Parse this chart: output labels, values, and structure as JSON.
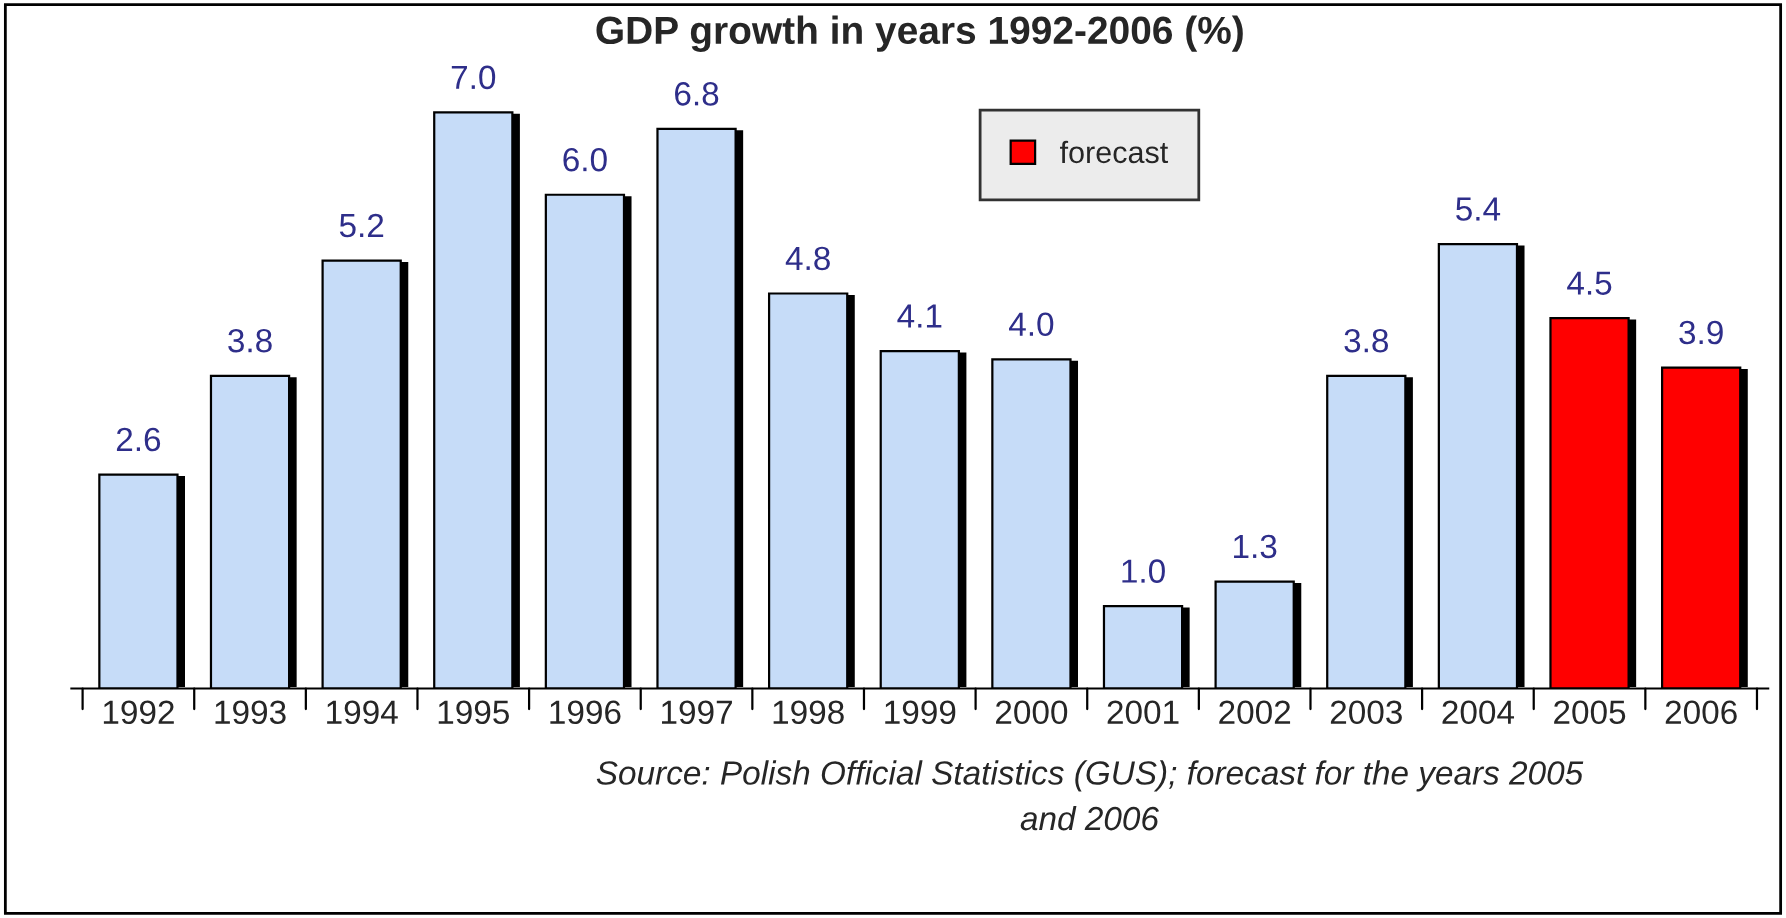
{
  "chart_data": {
    "type": "bar",
    "title": "GDP growth in years 1992-2006 (%)",
    "categories": [
      "1992",
      "1993",
      "1994",
      "1995",
      "1996",
      "1997",
      "1998",
      "1999",
      "2000",
      "2001",
      "2002",
      "2003",
      "2004",
      "2005",
      "2006"
    ],
    "series": [
      {
        "color": "#c6dcf8",
        "values": [
          2.6,
          3.8,
          5.2,
          7.0,
          6.0,
          6.8,
          4.8,
          4.1,
          4.0,
          1.0,
          1.3,
          3.8,
          5.4,
          null,
          null
        ],
        "value_labels": [
          "2.6",
          "3.8",
          "5.2",
          "7.0",
          "6.0",
          "6.8",
          "4.8",
          "4.1",
          "4.0",
          "1.0",
          "1.3",
          "3.8",
          "5.4",
          null,
          null
        ]
      },
      {
        "name": "forecast",
        "color": "#ff0000",
        "values": [
          null,
          null,
          null,
          null,
          null,
          null,
          null,
          null,
          null,
          null,
          null,
          null,
          null,
          4.5,
          3.9
        ],
        "value_labels": [
          null,
          null,
          null,
          null,
          null,
          null,
          null,
          null,
          null,
          null,
          null,
          null,
          null,
          "4.5",
          "3.9"
        ]
      }
    ],
    "grid": false,
    "legend": "top",
    "annotations": [
      "Source: Polish Official Statistics (GUS); forecast for the years 2005\nand 2006"
    ]
  }
}
